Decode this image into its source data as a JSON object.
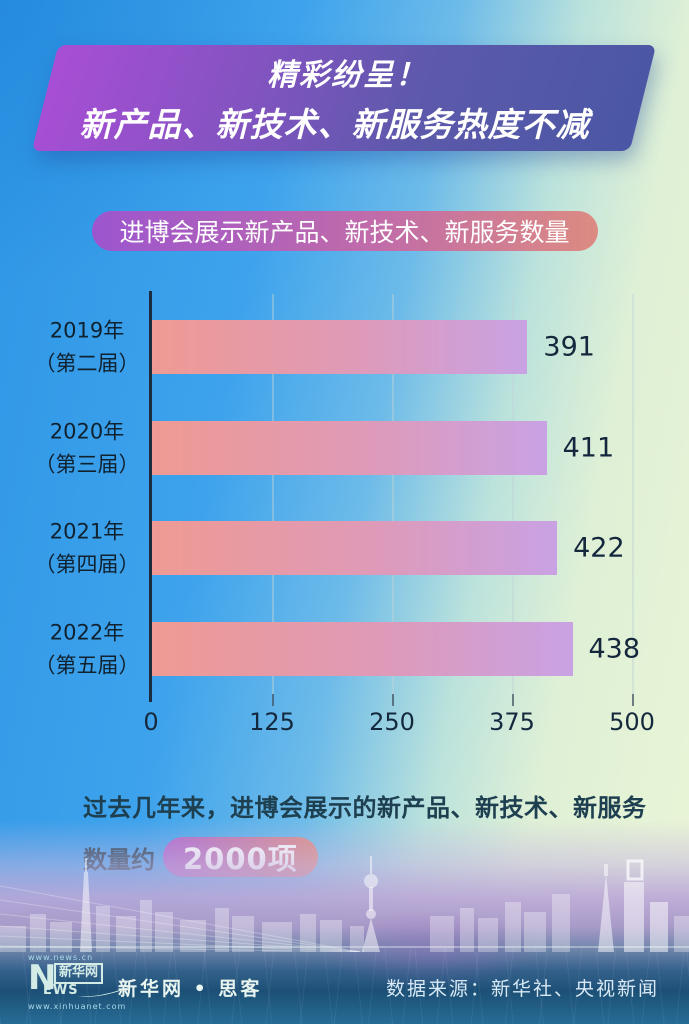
{
  "banner": {
    "line1": "精彩纷呈！",
    "line2": "新产品、新技术、新服务热度不减"
  },
  "subtitle_pill": "进博会展示新产品、新技术、新服务数量",
  "chart_data": {
    "type": "bar",
    "orientation": "horizontal",
    "title": "进博会展示新产品、新技术、新服务数量",
    "categories": [
      {
        "line1": "2019年",
        "line2": "（第二届）"
      },
      {
        "line1": "2020年",
        "line2": "（第三届）"
      },
      {
        "line1": "2021年",
        "line2": "（第四届）"
      },
      {
        "line1": "2022年",
        "line2": "（第五届）"
      }
    ],
    "values": [
      391,
      411,
      422,
      438
    ],
    "xlim": [
      0,
      500
    ],
    "x_ticks": [
      "0",
      "125",
      "250",
      "375",
      "500"
    ],
    "grid": true,
    "legend": false,
    "bar_gradient": [
      "#EF9A93",
      "#C9A2E4"
    ]
  },
  "summary": {
    "line1": "过去几年来，进博会展示的新产品、新技术、新服务",
    "line2_prefix": "数量约",
    "highlight": "2000项"
  },
  "footer": {
    "logo": {
      "url_top": "www.news.cn",
      "n": "N",
      "xinhua": "新华网",
      "ews": "EWS",
      "url_bottom": "www.xinhuanet.com"
    },
    "brand": "新华网 • 思客",
    "source": "数据来源：新华社、央视新闻"
  },
  "colors": {
    "banner_gradient": [
      "#A84ED5",
      "#4A57A4"
    ],
    "pill_gradient": [
      "#9C55CE",
      "#DC8B82"
    ],
    "bar_gradient_start": "#EF9A93",
    "bar_gradient_end": "#C9A2E4",
    "axis_color": "#1C2B3D",
    "text_dark": "#15293E",
    "footer_blue": "#1D5076",
    "background_blue": "#3EA3EC",
    "background_green": "#EAF5D6",
    "skyline_lavender": "#C4B2DC"
  }
}
